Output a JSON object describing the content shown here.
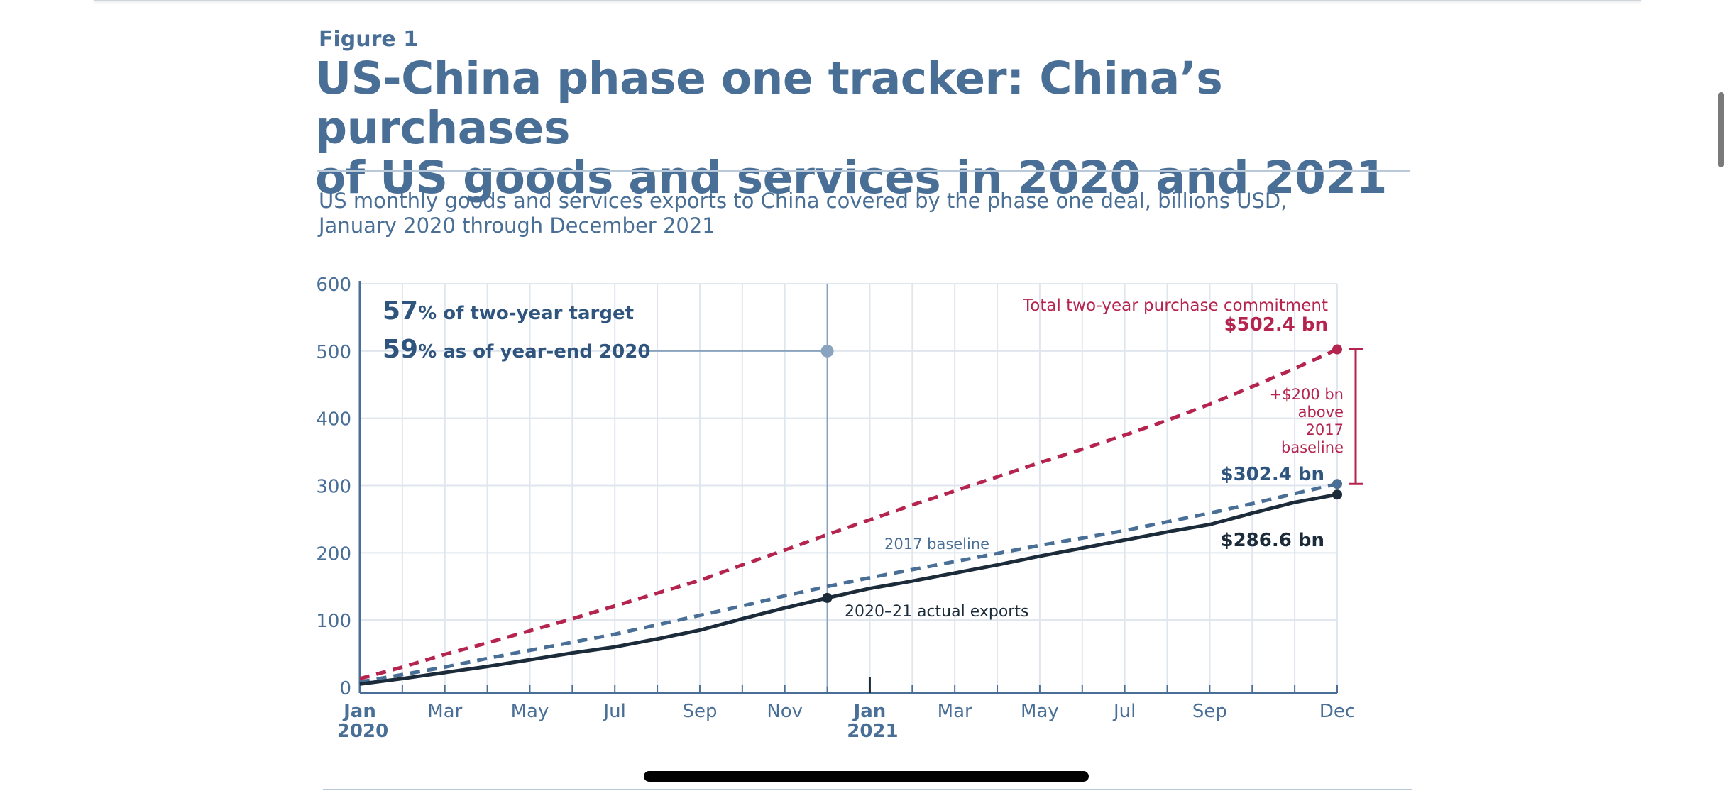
{
  "figure_label": "Figure 1",
  "title_line1": "US-China phase one tracker: China’s purchases",
  "title_line2": "of US goods and services in 2020 and 2021",
  "subtitle_line1": "US monthly goods and services exports to China covered by the phase one deal, billions USD,",
  "subtitle_line2": "January 2020 through December 2021",
  "colors": {
    "accent": "#4a6f96",
    "commitment": "#b5234f",
    "baseline": "#4a6f96",
    "actual": "#1c2b3a",
    "grid": "#dfe6ed",
    "axis": "#4a6f96"
  },
  "annotations": {
    "pct_target_num": "57",
    "pct_target_text": "% of two-year target",
    "pct_2020_num": "59",
    "pct_2020_text": "% as of year-end 2020",
    "commitment_label": "Total two-year purchase commitment",
    "commitment_value": "$502.4 bn",
    "above_baseline": [
      "+$200 bn",
      "above",
      "2017",
      "baseline"
    ],
    "baseline_value": "$302.4 bn",
    "actual_value": "$286.6 bn",
    "baseline_series_label": "2017 baseline",
    "actual_series_label": "2020–21 actual exports"
  },
  "chart_data": {
    "type": "line",
    "ylim": [
      0,
      600
    ],
    "yticks": [
      0,
      100,
      200,
      300,
      400,
      500,
      600
    ],
    "x_months": [
      "Jan 2020",
      "Feb 2020",
      "Mar 2020",
      "Apr 2020",
      "May 2020",
      "Jun 2020",
      "Jul 2020",
      "Aug 2020",
      "Sep 2020",
      "Oct 2020",
      "Nov 2020",
      "Dec 2020",
      "Jan 2021",
      "Feb 2021",
      "Mar 2021",
      "Apr 2021",
      "May 2021",
      "Jun 2021",
      "Jul 2021",
      "Aug 2021",
      "Sep 2021",
      "Oct 2021",
      "Nov 2021",
      "Dec 2021"
    ],
    "xtick_labels": [
      {
        "month_index": 0,
        "label": "Jan",
        "year": "2020"
      },
      {
        "month_index": 2,
        "label": "Mar",
        "year": ""
      },
      {
        "month_index": 4,
        "label": "May",
        "year": ""
      },
      {
        "month_index": 6,
        "label": "Jul",
        "year": ""
      },
      {
        "month_index": 8,
        "label": "Sep",
        "year": ""
      },
      {
        "month_index": 10,
        "label": "Nov",
        "year": ""
      },
      {
        "month_index": 12,
        "label": "Jan",
        "year": "2021"
      },
      {
        "month_index": 14,
        "label": "Mar",
        "year": ""
      },
      {
        "month_index": 16,
        "label": "May",
        "year": ""
      },
      {
        "month_index": 18,
        "label": "Jul",
        "year": ""
      },
      {
        "month_index": 20,
        "label": "Sep",
        "year": ""
      },
      {
        "month_index": 23,
        "label": "Dec",
        "year": ""
      }
    ],
    "series": [
      {
        "key": "commitment",
        "values": [
          13,
          30,
          49,
          66,
          84,
          102,
          121,
          140,
          159,
          182,
          204,
          227,
          249,
          271,
          292,
          313,
          334,
          354,
          375,
          397,
          421,
          447,
          474,
          502.4
        ]
      },
      {
        "key": "baseline",
        "values": [
          8,
          19,
          30,
          43,
          55,
          67,
          79,
          93,
          107,
          121,
          136,
          150,
          163,
          175,
          187,
          199,
          211,
          222,
          233,
          246,
          259,
          273,
          288,
          302.4
        ]
      },
      {
        "key": "actual",
        "values": [
          5,
          13,
          22,
          31,
          41,
          51,
          60,
          72,
          85,
          102,
          118,
          133,
          147,
          158,
          170,
          182,
          195,
          207,
          219,
          231,
          242,
          259,
          275,
          286.6
        ]
      }
    ],
    "reference_point": {
      "month_index": 11,
      "value": 500
    }
  }
}
